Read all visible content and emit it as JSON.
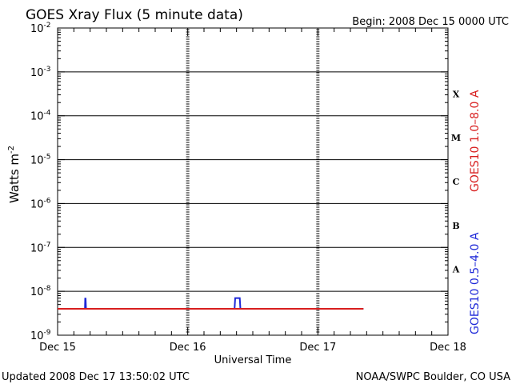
{
  "chart_data": {
    "type": "line",
    "title": "GOES Xray Flux (5 minute data)",
    "begin_label": "Begin:  2008 Dec 15 0000 UTC",
    "xlabel": "Universal Time",
    "ylabel": "Watts m",
    "ylabel_exp": "-2",
    "x_ticks": [
      "Dec 15",
      "Dec 16",
      "Dec 17",
      "Dec 18"
    ],
    "x_range_days": [
      0,
      3
    ],
    "y_scale": "log",
    "y_range": [
      1e-09,
      0.01
    ],
    "y_tick_labels": [
      {
        "base": "10",
        "exp": "-2"
      },
      {
        "base": "10",
        "exp": "-3"
      },
      {
        "base": "10",
        "exp": "-4"
      },
      {
        "base": "10",
        "exp": "-5"
      },
      {
        "base": "10",
        "exp": "-6"
      },
      {
        "base": "10",
        "exp": "-7"
      },
      {
        "base": "10",
        "exp": "-8"
      },
      {
        "base": "10",
        "exp": "-9"
      }
    ],
    "flare_classes": [
      "X",
      "M",
      "C",
      "B",
      "A"
    ],
    "series": [
      {
        "name": "GOES10 1.0–8.0 A",
        "color": "#d81e1e",
        "points": [
          [
            0,
            4e-09
          ],
          [
            2.35,
            4e-09
          ]
        ]
      },
      {
        "name": "GOES10 0.5–4.0 A",
        "color": "#1e28d8",
        "points": [
          [
            0,
            4e-09
          ],
          [
            0.21,
            4e-09
          ],
          [
            0.212,
            6.8e-09
          ],
          [
            0.215,
            6.8e-09
          ],
          [
            0.218,
            4e-09
          ],
          [
            1.36,
            4e-09
          ],
          [
            1.365,
            7e-09
          ],
          [
            1.4,
            7e-09
          ],
          [
            1.405,
            4e-09
          ],
          [
            2.35,
            4e-09
          ]
        ]
      }
    ]
  },
  "footer": {
    "updated": "Updated 2008 Dec 17 13:50:02 UTC",
    "credit": "NOAA/SWPC Boulder, CO USA"
  }
}
